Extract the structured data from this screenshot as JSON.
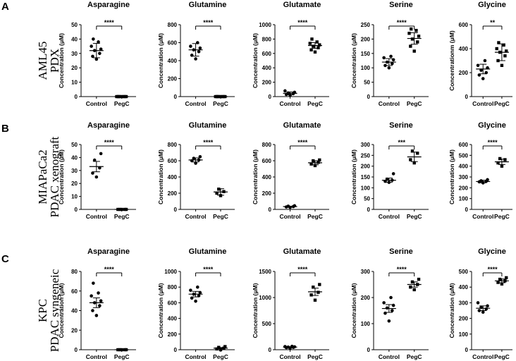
{
  "chart_data": [
    {
      "panel": "A",
      "row_label": [
        "AML45",
        "PDX"
      ],
      "charts": [
        {
          "type": "scatter",
          "title": "Asparagine",
          "ylabel": "Concentration (μM)",
          "ylim": [
            0,
            50
          ],
          "yticks": [
            "0",
            "10",
            "20",
            "30",
            "40",
            "50"
          ],
          "categories": [
            "Control",
            "PegC"
          ],
          "series": [
            {
              "name": "Control",
              "values": [
                26,
                28,
                30,
                32,
                33,
                35,
                38,
                40
              ]
            },
            {
              "name": "PegC",
              "values": [
                0,
                0,
                0,
                0,
                0,
                0,
                0,
                0
              ]
            }
          ],
          "means": [
            32,
            0
          ],
          "errors": [
            5,
            0
          ],
          "significance": "****"
        },
        {
          "type": "scatter",
          "title": "Glutamine",
          "ylabel": "Concentration (μM)",
          "ylim": [
            0,
            800
          ],
          "yticks": [
            "0",
            "200",
            "400",
            "600",
            "800"
          ],
          "categories": [
            "Control",
            "PegC"
          ],
          "series": [
            {
              "name": "Control",
              "values": [
                420,
                460,
                500,
                520,
                540,
                560,
                600
              ]
            },
            {
              "name": "PegC",
              "values": [
                0,
                0,
                0,
                0,
                0,
                0,
                0,
                0
              ]
            }
          ],
          "means": [
            520,
            0
          ],
          "errors": [
            70,
            0
          ],
          "significance": "****"
        },
        {
          "type": "scatter",
          "title": "Glutamate",
          "ylabel": "Concentration (μM)",
          "ylim": [
            0,
            1000
          ],
          "yticks": [
            "0",
            "200",
            "400",
            "600",
            "800",
            "1000"
          ],
          "categories": [
            "Control",
            "PegC"
          ],
          "series": [
            {
              "name": "Control",
              "values": [
                20,
                30,
                40,
                50,
                60,
                80
              ]
            },
            {
              "name": "PegC",
              "values": [
                620,
                650,
                680,
                700,
                720,
                740,
                760,
                800
              ]
            }
          ],
          "means": [
            45,
            710
          ],
          "errors": [
            20,
            40
          ],
          "significance": "****"
        },
        {
          "type": "scatter",
          "title": "Serine",
          "ylabel": "Concentration (μM)",
          "ylim": [
            0,
            250
          ],
          "yticks": [
            "0",
            "50",
            "100",
            "150",
            "200",
            "250"
          ],
          "categories": [
            "Control",
            "PegC"
          ],
          "series": [
            {
              "name": "Control",
              "values": [
                100,
                108,
                115,
                120,
                128,
                135,
                140
              ]
            },
            {
              "name": "PegC",
              "values": [
                158,
                175,
                190,
                200,
                210,
                220,
                230,
                235
              ]
            }
          ],
          "means": [
            120,
            202
          ],
          "errors": [
            12,
            20
          ],
          "significance": "****"
        },
        {
          "type": "scatter",
          "title": "Glycine",
          "ylabel": "Concentrationm (μM)",
          "ylim": [
            0,
            600
          ],
          "yticks": [
            "0",
            "200",
            "400",
            "600"
          ],
          "categories": [
            "Control",
            "PegC"
          ],
          "series": [
            {
              "name": "Control",
              "values": [
                150,
                180,
                200,
                220,
                240,
                260,
                300
              ]
            },
            {
              "name": "PegC",
              "values": [
                260,
                300,
                340,
                370,
                380,
                400,
                430,
                450
              ]
            }
          ],
          "means": [
            230,
            370
          ],
          "errors": [
            40,
            70
          ],
          "significance": "**"
        }
      ]
    },
    {
      "panel": "B",
      "row_label": [
        "MIAPaCa2",
        "PDAC xenograft"
      ],
      "charts": [
        {
          "type": "scatter",
          "title": "Asparagine",
          "ylabel": "Concentration (μM)",
          "ylim": [
            0,
            50
          ],
          "yticks": [
            "0",
            "10",
            "20",
            "30",
            "40",
            "50"
          ],
          "categories": [
            "Control",
            "PegC"
          ],
          "series": [
            {
              "name": "Control",
              "values": [
                25,
                28,
                32,
                38,
                43
              ]
            },
            {
              "name": "PegC",
              "values": [
                0,
                0,
                0,
                0,
                0
              ]
            }
          ],
          "means": [
            33,
            0
          ],
          "errors": [
            4,
            0
          ],
          "significance": "****"
        },
        {
          "type": "scatter",
          "title": "Glutamine",
          "ylabel": "Concentration (μM)",
          "ylim": [
            0,
            800
          ],
          "yticks": [
            "0",
            "200",
            "400",
            "600",
            "800"
          ],
          "categories": [
            "Control",
            "PegC"
          ],
          "series": [
            {
              "name": "Control",
              "values": [
                570,
                600,
                610,
                630,
                650
              ]
            },
            {
              "name": "PegC",
              "values": [
                170,
                200,
                220,
                250
              ]
            }
          ],
          "means": [
            610,
            215
          ],
          "errors": [
            25,
            40
          ],
          "significance": "****"
        },
        {
          "type": "scatter",
          "title": "Glutamate",
          "ylabel": "Concentration (μM)",
          "ylim": [
            0,
            800
          ],
          "yticks": [
            "0",
            "200",
            "400",
            "600",
            "800"
          ],
          "categories": [
            "Control",
            "PegC"
          ],
          "series": [
            {
              "name": "Control",
              "values": [
                25,
                30,
                35,
                40,
                45
              ]
            },
            {
              "name": "PegC",
              "values": [
                540,
                560,
                580,
                600,
                610
              ]
            }
          ],
          "means": [
            35,
            575
          ],
          "errors": [
            5,
            25
          ],
          "significance": "****"
        },
        {
          "type": "scatter",
          "title": "Serine",
          "ylabel": "Concentration (μM)",
          "ylim": [
            0,
            300
          ],
          "yticks": [
            "0",
            "50",
            "100",
            "150",
            "200",
            "250",
            "300"
          ],
          "categories": [
            "Control",
            "PegC"
          ],
          "series": [
            {
              "name": "Control",
              "values": [
                125,
                130,
                135,
                140,
                165
              ]
            },
            {
              "name": "PegC",
              "values": [
                215,
                230,
                260,
                270
              ]
            }
          ],
          "means": [
            135,
            243
          ],
          "errors": [
            10,
            22
          ],
          "significance": "***"
        },
        {
          "type": "scatter",
          "title": "Glycine",
          "ylabel": "Concentration (μM)",
          "ylim": [
            0,
            600
          ],
          "yticks": [
            "0",
            "100",
            "200",
            "300",
            "400",
            "500",
            "600"
          ],
          "categories": [
            "Control",
            "PegC"
          ],
          "series": [
            {
              "name": "Control",
              "values": [
                245,
                255,
                260,
                265,
                275
              ]
            },
            {
              "name": "PegC",
              "values": [
                400,
                430,
                460,
                470
              ]
            }
          ],
          "means": [
            258,
            440
          ],
          "errors": [
            12,
            25
          ],
          "significance": "****"
        }
      ]
    },
    {
      "panel": "C",
      "row_label": [
        "KPC",
        "PDAC syngeneic"
      ],
      "charts": [
        {
          "type": "scatter",
          "title": "Asparagine",
          "ylabel": "Concentration (μM)",
          "ylim": [
            0,
            80
          ],
          "yticks": [
            "0",
            "20",
            "40",
            "60",
            "80"
          ],
          "categories": [
            "Control",
            "PegC"
          ],
          "series": [
            {
              "name": "Control",
              "values": [
                35,
                40,
                45,
                48,
                50,
                55,
                58,
                68
              ]
            },
            {
              "name": "PegC",
              "values": [
                0,
                0,
                0,
                0,
                0
              ]
            }
          ],
          "means": [
            48,
            0
          ],
          "errors": [
            5,
            0
          ],
          "significance": "****"
        },
        {
          "type": "scatter",
          "title": "Glutamine",
          "ylabel": "Concentration (μM)",
          "ylim": [
            0,
            1000
          ],
          "yticks": [
            "0",
            "200",
            "400",
            "600",
            "800",
            "1000"
          ],
          "categories": [
            "Control",
            "PegC"
          ],
          "series": [
            {
              "name": "Control",
              "values": [
                620,
                660,
                690,
                710,
                730,
                760,
                800
              ]
            },
            {
              "name": "PegC",
              "values": [
                0,
                10,
                20,
                30,
                40
              ]
            }
          ],
          "means": [
            710,
            20
          ],
          "errors": [
            35,
            8
          ],
          "significance": "****"
        },
        {
          "type": "scatter",
          "title": "Glutamate",
          "ylabel": "Concentration (μM)",
          "ylim": [
            0,
            1500
          ],
          "yticks": [
            "0",
            "500",
            "1000",
            "1500"
          ],
          "categories": [
            "Control",
            "PegC"
          ],
          "series": [
            {
              "name": "Control",
              "values": [
                30,
                40,
                45,
                50,
                55,
                60,
                65
              ]
            },
            {
              "name": "PegC",
              "values": [
                950,
                1050,
                1100,
                1200,
                1250
              ]
            }
          ],
          "means": [
            50,
            1110
          ],
          "errors": [
            8,
            70
          ],
          "significance": "****"
        },
        {
          "type": "scatter",
          "title": "Serine",
          "ylabel": "Concentration (μM)",
          "ylim": [
            0,
            300
          ],
          "yticks": [
            "0",
            "100",
            "200",
            "300"
          ],
          "categories": [
            "Control",
            "PegC"
          ],
          "series": [
            {
              "name": "Control",
              "values": [
                110,
                140,
                150,
                160,
                170,
                180,
                200
              ]
            },
            {
              "name": "PegC",
              "values": [
                230,
                240,
                250,
                260,
                270
              ]
            }
          ],
          "means": [
            158,
            250
          ],
          "errors": [
            15,
            10
          ],
          "significance": "****"
        },
        {
          "type": "scatter",
          "title": "Glycine",
          "ylabel": "Concentration (μM)",
          "ylim": [
            0,
            500
          ],
          "yticks": [
            "0",
            "100",
            "200",
            "300",
            "400",
            "500"
          ],
          "categories": [
            "Control",
            "PegC"
          ],
          "series": [
            {
              "name": "Control",
              "values": [
                240,
                250,
                260,
                270,
                280,
                300
              ]
            },
            {
              "name": "PegC",
              "values": [
                420,
                430,
                440,
                450,
                460
              ]
            }
          ],
          "means": [
            265,
            440
          ],
          "errors": [
            15,
            12
          ],
          "significance": "****"
        }
      ]
    }
  ],
  "colors": {
    "ink": "#000000",
    "background": "#ffffff"
  }
}
